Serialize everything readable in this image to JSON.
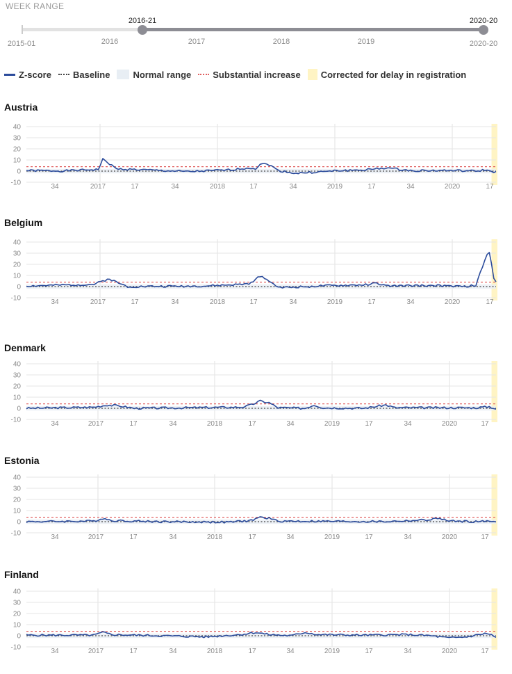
{
  "week_range": {
    "title": "WEEK RANGE",
    "start_label": "2016-21",
    "end_label": "2020-20",
    "min_label": "2015-01",
    "max_label": "2020-20",
    "year_ticks": [
      "2016",
      "2017",
      "2018",
      "2019"
    ],
    "selected_start": "2016-21",
    "selected_end": "2020-20"
  },
  "legend": {
    "zscore": "Z-score",
    "baseline": "Baseline",
    "normal": "Normal range",
    "substantial": "Substantial increase",
    "corrected": "Corrected for delay in registration"
  },
  "colors": {
    "zscore": "#2b4b9b",
    "baseline": "#444444",
    "normal_range": "#e8eef4",
    "substantial": "#e06060",
    "corrected": "#fff4c4",
    "grid": "#e6e6e6",
    "slider_track": "#e2e2e2",
    "slider_selected": "#8d8d94"
  },
  "chart_data": [
    {
      "type": "line",
      "title": "Austria",
      "ylim": [
        -10,
        40
      ],
      "yticks": [
        -10,
        0,
        10,
        20,
        30,
        40
      ],
      "x_tick_labels": [
        "34",
        "2017",
        "17",
        "34",
        "2018",
        "17",
        "34",
        "2019",
        "17",
        "34",
        "2020",
        "17"
      ],
      "baseline": 0,
      "substantial_increase": 4,
      "series": [
        {
          "name": "Z-score",
          "x_range": [
            "2016-21",
            "2020-20"
          ],
          "key_points": [
            [
              0,
              0.5
            ],
            [
              16,
              0.2
            ],
            [
              32,
              1.5
            ],
            [
              34,
              10.5
            ],
            [
              36,
              8
            ],
            [
              40,
              2
            ],
            [
              60,
              0.5
            ],
            [
              72,
              -0.5
            ],
            [
              90,
              1
            ],
            [
              100,
              3
            ],
            [
              102,
              2
            ],
            [
              104,
              6.5
            ],
            [
              108,
              6
            ],
            [
              112,
              0.5
            ],
            [
              120,
              -2
            ],
            [
              140,
              0.5
            ],
            [
              150,
              1
            ],
            [
              156,
              2
            ],
            [
              160,
              3
            ],
            [
              170,
              0.5
            ],
            [
              190,
              0.5
            ],
            [
              200,
              0
            ],
            [
              204,
              1
            ],
            [
              209,
              -1
            ]
          ],
          "wobble": 0.9,
          "seed": 1
        }
      ]
    },
    {
      "type": "line",
      "title": "Belgium",
      "ylim": [
        -10,
        40
      ],
      "yticks": [
        -10,
        0,
        10,
        20,
        30,
        40
      ],
      "x_tick_labels": [
        "34",
        "2017",
        "17",
        "34",
        "2018",
        "17",
        "34",
        "2019",
        "17",
        "34",
        "2020",
        "17"
      ],
      "baseline": 0,
      "substantial_increase": 4,
      "series": [
        {
          "name": "Z-score",
          "x_range": [
            "2016-21",
            "2020-20"
          ],
          "key_points": [
            [
              0,
              0.5
            ],
            [
              30,
              2
            ],
            [
              34,
              5
            ],
            [
              37,
              7
            ],
            [
              40,
              4
            ],
            [
              45,
              0
            ],
            [
              80,
              0.5
            ],
            [
              96,
              2
            ],
            [
              100,
              3
            ],
            [
              104,
              9.5
            ],
            [
              106,
              8
            ],
            [
              110,
              2
            ],
            [
              114,
              -1
            ],
            [
              130,
              0.5
            ],
            [
              150,
              1.5
            ],
            [
              156,
              3
            ],
            [
              160,
              0.5
            ],
            [
              180,
              1
            ],
            [
              194,
              0
            ],
            [
              200,
              1
            ],
            [
              203,
              18
            ],
            [
              205,
              29
            ],
            [
              206,
              30.5
            ],
            [
              207,
              20
            ],
            [
              208,
              8
            ],
            [
              209,
              4
            ]
          ],
          "wobble": 0.9,
          "seed": 2
        }
      ]
    },
    {
      "type": "line",
      "title": "Denmark",
      "ylim": [
        -10,
        40
      ],
      "yticks": [
        -10,
        0,
        10,
        20,
        30,
        40
      ],
      "x_tick_labels": [
        "34",
        "2017",
        "17",
        "34",
        "2018",
        "17",
        "34",
        "2019",
        "17",
        "34",
        "2020",
        "17"
      ],
      "baseline": 0,
      "substantial_increase": 4,
      "series": [
        {
          "name": "Z-score",
          "x_range": [
            "2016-21",
            "2020-20"
          ],
          "key_points": [
            [
              0,
              0
            ],
            [
              30,
              1
            ],
            [
              36,
              3
            ],
            [
              42,
              2
            ],
            [
              48,
              0
            ],
            [
              96,
              1
            ],
            [
              100,
              3
            ],
            [
              104,
              6.5
            ],
            [
              108,
              5
            ],
            [
              112,
              0.5
            ],
            [
              124,
              0
            ],
            [
              128,
              3
            ],
            [
              132,
              0.5
            ],
            [
              150,
              0
            ],
            [
              160,
              3
            ],
            [
              164,
              0.5
            ],
            [
              200,
              0.5
            ],
            [
              206,
              1.5
            ],
            [
              209,
              -0.5
            ]
          ],
          "wobble": 0.9,
          "seed": 3
        }
      ]
    },
    {
      "type": "line",
      "title": "Estonia",
      "ylim": [
        -10,
        40
      ],
      "yticks": [
        -10,
        0,
        10,
        20,
        30,
        40
      ],
      "x_tick_labels": [
        "34",
        "2017",
        "17",
        "34",
        "2018",
        "17",
        "34",
        "2019",
        "17",
        "34",
        "2020",
        "17"
      ],
      "baseline": 0,
      "substantial_increase": 4,
      "series": [
        {
          "name": "Z-score",
          "x_range": [
            "2016-21",
            "2020-20"
          ],
          "key_points": [
            [
              0,
              0
            ],
            [
              30,
              0.5
            ],
            [
              34,
              3
            ],
            [
              38,
              1
            ],
            [
              60,
              0
            ],
            [
              90,
              -0.5
            ],
            [
              100,
              1
            ],
            [
              104,
              4
            ],
            [
              108,
              3
            ],
            [
              112,
              0.5
            ],
            [
              160,
              0
            ],
            [
              178,
              1.5
            ],
            [
              184,
              3
            ],
            [
              188,
              0.5
            ],
            [
              200,
              0
            ],
            [
              209,
              0.5
            ]
          ],
          "wobble": 0.9,
          "seed": 4
        }
      ]
    },
    {
      "type": "line",
      "title": "Finland",
      "ylim": [
        -10,
        40
      ],
      "yticks": [
        -10,
        0,
        10,
        20,
        30,
        40
      ],
      "x_tick_labels": [
        "34",
        "2017",
        "17",
        "34",
        "2018",
        "17",
        "34",
        "2019",
        "17",
        "34",
        "2020",
        "17"
      ],
      "baseline": 0,
      "substantial_increase": 4,
      "series": [
        {
          "name": "Z-score",
          "x_range": [
            "2016-21",
            "2020-20"
          ],
          "key_points": [
            [
              0,
              0.5
            ],
            [
              30,
              0.5
            ],
            [
              34,
              3
            ],
            [
              38,
              1
            ],
            [
              60,
              0
            ],
            [
              80,
              -1
            ],
            [
              95,
              1
            ],
            [
              102,
              3
            ],
            [
              108,
              1
            ],
            [
              118,
              0
            ],
            [
              124,
              3
            ],
            [
              130,
              1
            ],
            [
              150,
              0.5
            ],
            [
              170,
              1
            ],
            [
              180,
              0
            ],
            [
              188,
              -2
            ],
            [
              196,
              -1
            ],
            [
              204,
              2
            ],
            [
              207,
              1
            ],
            [
              209,
              -2
            ]
          ],
          "wobble": 0.9,
          "seed": 5
        }
      ]
    }
  ]
}
